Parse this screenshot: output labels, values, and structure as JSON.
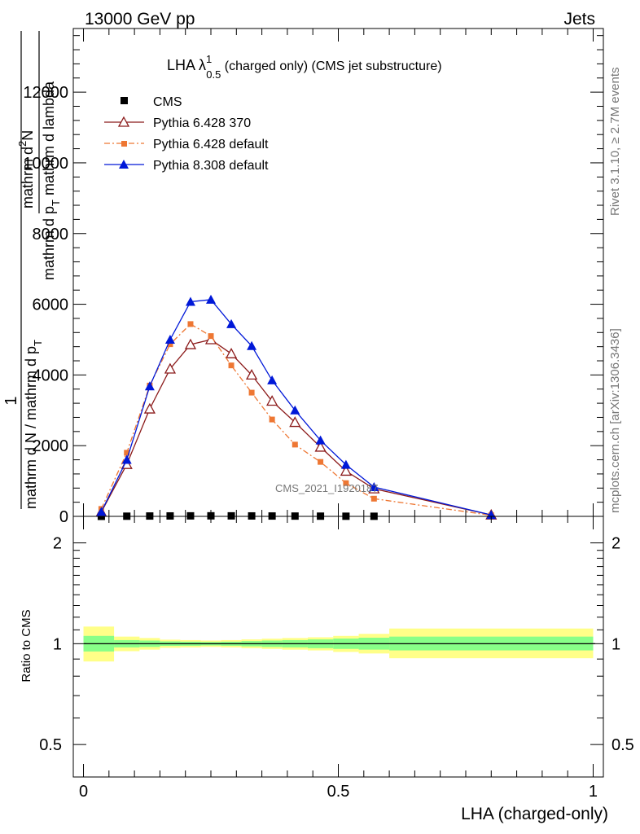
{
  "header": {
    "left": "13000 GeV pp",
    "right": "Jets"
  },
  "side_text": {
    "rivet": "Rivet 3.1.10, ≥ 2.7M events",
    "mcplots": "mcplots.cern.ch [arXiv:1306.3436]"
  },
  "watermark": "CMS_2021_I1920187",
  "ylabel_main": {
    "one": "1",
    "num_top": "mathrm d",
    "num_sup": "2",
    "num_bottom": "N",
    "den": "mathrm d p",
    "den_sub": "T",
    "den_tail": " mathrm d lambda",
    "outer_num": "mathrm d N / mathrm d p",
    "outer_sub": "T"
  },
  "ylabel_ratio": "Ratio to CMS",
  "xlabel": "LHA (charged-only)",
  "chart_data": [
    {
      "type": "line",
      "title": "LHA λ",
      "title_sup": "1",
      "title_sub": "0.5",
      "title_tail": " (charged only) (CMS jet substructure)",
      "xlim": [
        -0.02,
        1.02
      ],
      "ylim": [
        0,
        13800
      ],
      "yticks": [
        0,
        2000,
        4000,
        6000,
        8000,
        10000,
        12000
      ],
      "ytick_labels": [
        "0",
        "2000",
        "4000",
        "6000",
        "8000",
        "10000",
        "12000"
      ],
      "legend_position": "top-left",
      "series": [
        {
          "name": "CMS",
          "color": "#000000",
          "marker": "square",
          "x": [
            0.035,
            0.085,
            0.13,
            0.17,
            0.21,
            0.25,
            0.29,
            0.33,
            0.37,
            0.415,
            0.465,
            0.515,
            0.57
          ],
          "y": [
            0,
            5,
            10,
            12,
            14,
            15,
            14,
            12,
            10,
            8,
            6,
            4,
            3
          ]
        },
        {
          "name": "Pythia 6.428 370",
          "color": "#8b1a1a",
          "marker": "triangle-open",
          "linestyle": "solid",
          "x": [
            0.035,
            0.085,
            0.13,
            0.17,
            0.21,
            0.25,
            0.29,
            0.33,
            0.37,
            0.415,
            0.465,
            0.515,
            0.57,
            0.8
          ],
          "y": [
            120,
            1470,
            3040,
            4170,
            4860,
            5000,
            4600,
            4000,
            3260,
            2660,
            1960,
            1280,
            780,
            40
          ]
        },
        {
          "name": "Pythia 6.428 default",
          "color": "#ee7733",
          "marker": "square-small",
          "linestyle": "dashdot",
          "x": [
            0.035,
            0.085,
            0.13,
            0.17,
            0.21,
            0.25,
            0.29,
            0.33,
            0.37,
            0.415,
            0.465,
            0.515,
            0.57,
            0.8
          ],
          "y": [
            210,
            1800,
            3700,
            4870,
            5440,
            5100,
            4270,
            3500,
            2740,
            2030,
            1540,
            940,
            500,
            30
          ]
        },
        {
          "name": "Pythia 8.308 default",
          "color": "#0018d8",
          "marker": "triangle-filled",
          "linestyle": "solid",
          "x": [
            0.035,
            0.085,
            0.13,
            0.17,
            0.21,
            0.25,
            0.29,
            0.33,
            0.37,
            0.415,
            0.465,
            0.515,
            0.57,
            0.8
          ],
          "y": [
            130,
            1600,
            3680,
            5000,
            6070,
            6130,
            5440,
            4820,
            3850,
            3000,
            2150,
            1460,
            830,
            40
          ]
        }
      ]
    },
    {
      "type": "area",
      "ylabel": "Ratio to CMS",
      "xlabel": "LHA (charged-only)",
      "scale": "log",
      "xlim": [
        -0.02,
        1.02
      ],
      "ylim": [
        0.4,
        2.4
      ],
      "yticks": [
        0.5,
        1,
        2
      ],
      "ytick_labels": [
        "0.5",
        "1",
        "2"
      ],
      "xticks": [
        0,
        0.5,
        1
      ],
      "xtick_labels": [
        "0",
        "0.5",
        "1"
      ],
      "bin_edges": [
        0.0,
        0.06,
        0.11,
        0.15,
        0.19,
        0.23,
        0.27,
        0.31,
        0.35,
        0.39,
        0.44,
        0.49,
        0.54,
        0.6,
        1.0
      ],
      "band_inner": {
        "color": "#88ff88",
        "lo": [
          0.948,
          0.975,
          0.978,
          0.985,
          0.986,
          0.988,
          0.986,
          0.982,
          0.978,
          0.975,
          0.97,
          0.965,
          0.96,
          0.955
        ],
        "hi": [
          1.055,
          1.025,
          1.022,
          1.016,
          1.014,
          1.012,
          1.014,
          1.018,
          1.022,
          1.025,
          1.03,
          1.036,
          1.042,
          1.05
        ]
      },
      "band_outer": {
        "color": "#ffff88",
        "lo": [
          0.885,
          0.95,
          0.96,
          0.972,
          0.975,
          0.978,
          0.975,
          0.97,
          0.965,
          0.96,
          0.955,
          0.945,
          0.935,
          0.905
        ],
        "hi": [
          1.125,
          1.05,
          1.04,
          1.028,
          1.025,
          1.022,
          1.025,
          1.03,
          1.035,
          1.04,
          1.045,
          1.055,
          1.07,
          1.11
        ]
      },
      "reference_line": 1
    }
  ]
}
